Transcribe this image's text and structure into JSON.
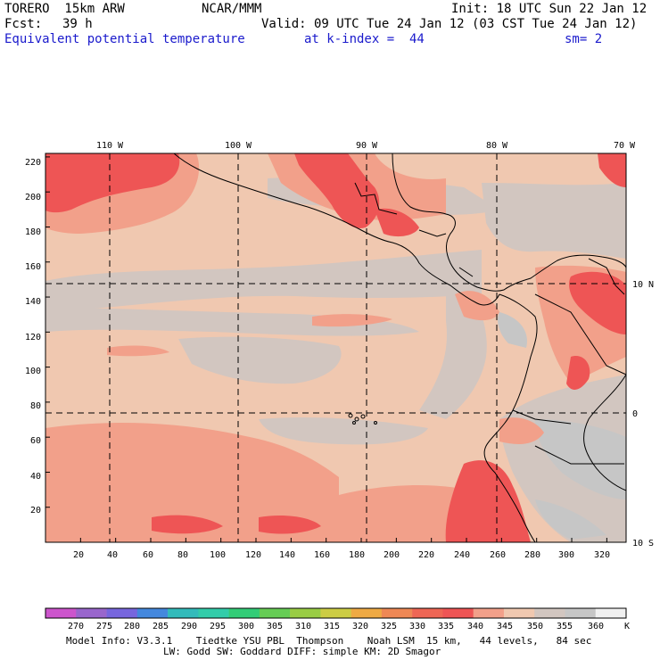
{
  "header": {
    "model": "TORERO  15km ARW",
    "org": "NCAR/MMM",
    "init": "Init: 18 UTC Sun 22 Jan 12",
    "fcst_label": "Fcst:",
    "fcst_value": "39 h",
    "valid": "Valid: 09 UTC Tue 24 Jan 12 (03 CST Tue 24 Jan 12)",
    "field": "Equivalent potential temperature",
    "level": "at k-index =  44",
    "smooth": "sm= 2"
  },
  "axes": {
    "x_ticks": [
      "20",
      "40",
      "60",
      "80",
      "100",
      "120",
      "140",
      "160",
      "180",
      "200",
      "220",
      "240",
      "260",
      "280",
      "300",
      "320"
    ],
    "y_ticks": [
      "20",
      "40",
      "60",
      "80",
      "100",
      "120",
      "140",
      "160",
      "180",
      "200",
      "220"
    ],
    "lon_labels": [
      "110 W",
      "100 W",
      "90 W",
      "80 W",
      "70 W"
    ],
    "lat_labels": [
      "10 N",
      "0",
      "10 S"
    ]
  },
  "colorbar": {
    "values": [
      "270",
      "275",
      "280",
      "285",
      "290",
      "295",
      "300",
      "305",
      "310",
      "315",
      "320",
      "325",
      "330",
      "335",
      "340",
      "345",
      "350",
      "355",
      "360"
    ],
    "unit": "K",
    "colors": [
      "#cc55cc",
      "#9966cc",
      "#7766dd",
      "#4488dd",
      "#33bbbb",
      "#33ccaa",
      "#33cc77",
      "#66cc55",
      "#99cc44",
      "#cccc44",
      "#eeaa44",
      "#ee8855",
      "#ee6655",
      "#ee5555",
      "#f2a08a",
      "#f0c8b0",
      "#d2c6c0",
      "#c6c6c6",
      "#f0f0f0"
    ]
  },
  "map": {
    "fields": {
      "sea": "#f0c8b0",
      "cool": "#d2c6c0",
      "warm": "#f2a08a",
      "hot": "#ee5555",
      "grey": "#c6c6c6"
    },
    "plot_colors": {
      "grid": "#000000",
      "coast": "#000000"
    }
  },
  "footer": {
    "line1": "Model Info: V3.3.1    Tiedtke YSU PBL  Thompson    Noah LSM  15 km,   44 levels,   84 sec",
    "line2": "LW: Godd SW: Goddard DIFF: simple KM: 2D Smagor"
  }
}
